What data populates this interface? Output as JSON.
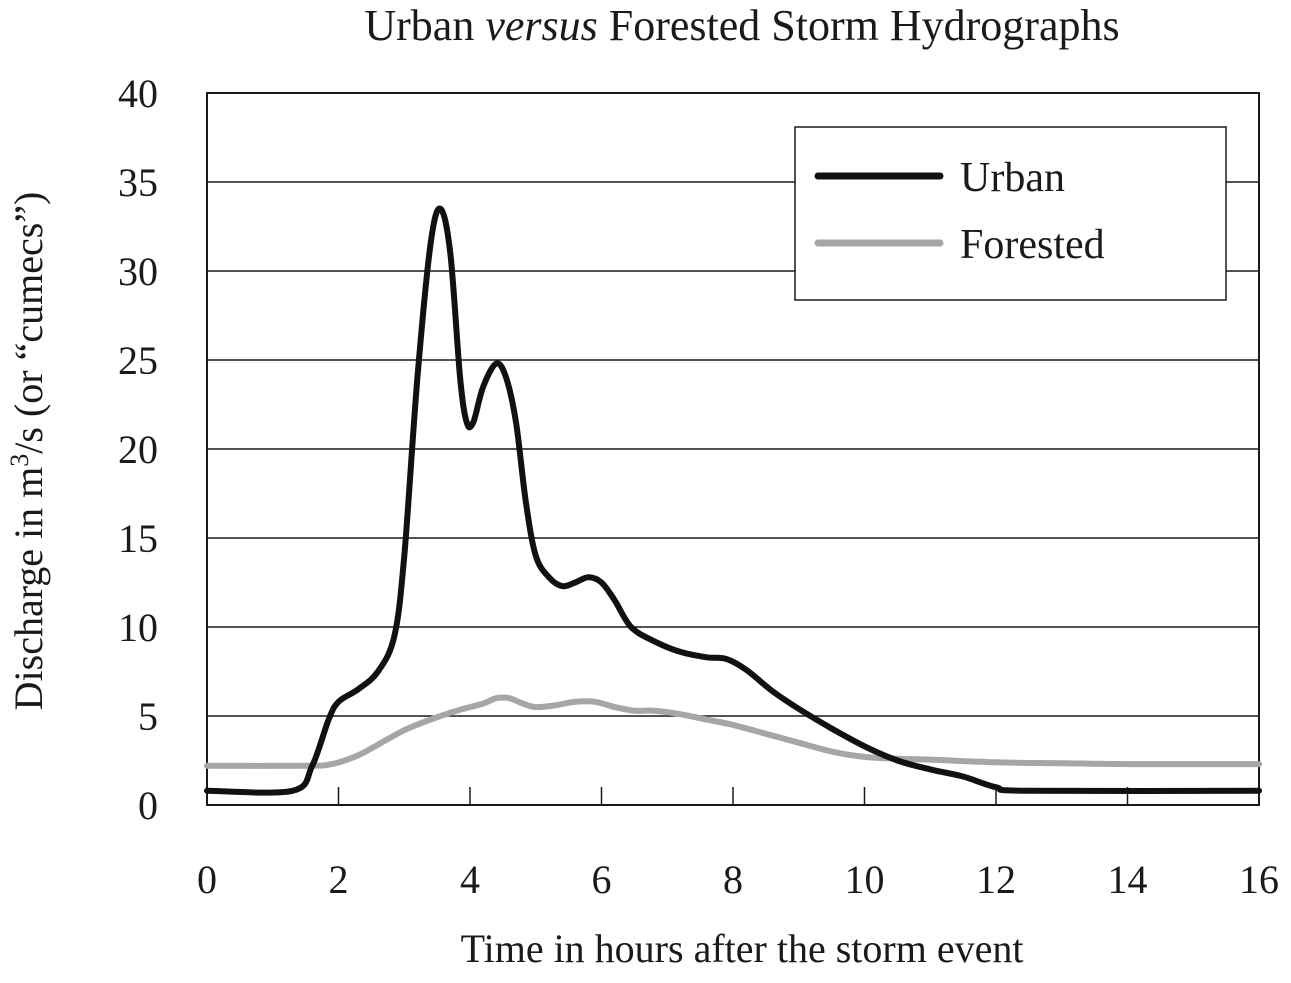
{
  "chart_data": {
    "type": "line",
    "title_parts": [
      "Urban ",
      "versus",
      " Forested Storm Hydrographs"
    ],
    "xlabel": "Time in hours after the storm event",
    "ylabel": {
      "before": "Discharge in m",
      "superscript": "3",
      "after": "/s (or “cumecs”)"
    },
    "xlim": [
      0,
      16
    ],
    "ylim": [
      0,
      40
    ],
    "x_ticks": [
      "0",
      "2",
      "4",
      "6",
      "8",
      "10",
      "12",
      "14",
      "16"
    ],
    "y_ticks": [
      "0",
      "5",
      "10",
      "15",
      "20",
      "25",
      "30",
      "35",
      "40"
    ],
    "grid": "horizontal",
    "legend_position": "top-right",
    "series": [
      {
        "name": "Urban",
        "color": "#111111",
        "points": [
          [
            0,
            0.8
          ],
          [
            1.3,
            0.8
          ],
          [
            1.6,
            2.2
          ],
          [
            1.85,
            4.8
          ],
          [
            2.0,
            5.8
          ],
          [
            2.3,
            6.5
          ],
          [
            2.6,
            7.5
          ],
          [
            2.85,
            9.5
          ],
          [
            3.0,
            14.0
          ],
          [
            3.2,
            24.0
          ],
          [
            3.4,
            31.5
          ],
          [
            3.55,
            33.5
          ],
          [
            3.7,
            31.0
          ],
          [
            3.85,
            24.0
          ],
          [
            3.95,
            21.5
          ],
          [
            4.05,
            21.5
          ],
          [
            4.2,
            23.5
          ],
          [
            4.4,
            24.8
          ],
          [
            4.55,
            24.0
          ],
          [
            4.7,
            21.5
          ],
          [
            4.85,
            17.0
          ],
          [
            5.0,
            14.0
          ],
          [
            5.2,
            12.8
          ],
          [
            5.4,
            12.3
          ],
          [
            5.6,
            12.5
          ],
          [
            5.8,
            12.8
          ],
          [
            6.0,
            12.5
          ],
          [
            6.2,
            11.5
          ],
          [
            6.45,
            10.0
          ],
          [
            6.8,
            9.2
          ],
          [
            7.2,
            8.6
          ],
          [
            7.6,
            8.3
          ],
          [
            7.9,
            8.2
          ],
          [
            8.2,
            7.6
          ],
          [
            8.6,
            6.4
          ],
          [
            9.0,
            5.4
          ],
          [
            9.5,
            4.3
          ],
          [
            10.0,
            3.3
          ],
          [
            10.5,
            2.5
          ],
          [
            11.0,
            2.0
          ],
          [
            11.5,
            1.6
          ],
          [
            12.0,
            1.0
          ],
          [
            12.5,
            0.8
          ],
          [
            16,
            0.8
          ]
        ]
      },
      {
        "name": "Forested",
        "color": "#a6a6a6",
        "points": [
          [
            0,
            2.2
          ],
          [
            1.5,
            2.2
          ],
          [
            1.9,
            2.3
          ],
          [
            2.3,
            2.8
          ],
          [
            2.7,
            3.6
          ],
          [
            3.0,
            4.2
          ],
          [
            3.4,
            4.8
          ],
          [
            3.8,
            5.3
          ],
          [
            4.2,
            5.7
          ],
          [
            4.4,
            6.0
          ],
          [
            4.6,
            6.0
          ],
          [
            4.8,
            5.7
          ],
          [
            5.0,
            5.5
          ],
          [
            5.3,
            5.6
          ],
          [
            5.6,
            5.8
          ],
          [
            5.9,
            5.8
          ],
          [
            6.2,
            5.5
          ],
          [
            6.5,
            5.3
          ],
          [
            6.8,
            5.3
          ],
          [
            7.2,
            5.1
          ],
          [
            7.6,
            4.8
          ],
          [
            8.0,
            4.5
          ],
          [
            8.5,
            4.0
          ],
          [
            9.0,
            3.5
          ],
          [
            9.5,
            3.0
          ],
          [
            10.0,
            2.7
          ],
          [
            10.5,
            2.6
          ],
          [
            11.0,
            2.55
          ],
          [
            12.0,
            2.4
          ],
          [
            13.0,
            2.35
          ],
          [
            14.0,
            2.3
          ],
          [
            16,
            2.3
          ]
        ]
      }
    ]
  }
}
